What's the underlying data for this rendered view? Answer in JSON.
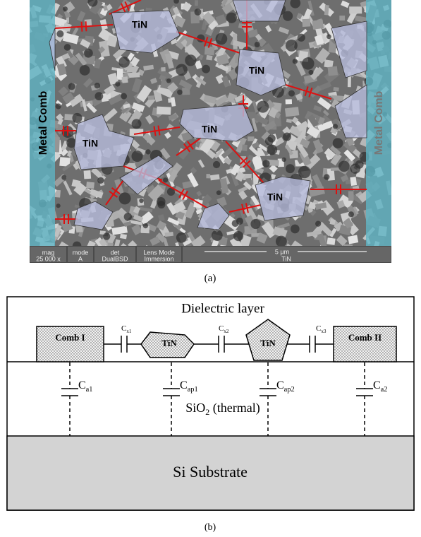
{
  "panel_a": {
    "label": "(a)",
    "tin_labels": [
      "TiN",
      "TiN",
      "TiN",
      "TiN",
      "TiN"
    ],
    "comb_labels": [
      "Metal Comb",
      "Metal Comb"
    ],
    "info_bar": {
      "headers": [
        "mag",
        "mode",
        "det",
        "Lens Mode"
      ],
      "values": [
        "25 000 x",
        "A",
        "DualBSD",
        "Immersion"
      ],
      "scale_bar": "5 µm",
      "sample": "TiN"
    }
  },
  "panel_b": {
    "label": "(b)",
    "layer": "Dielectric layer",
    "combs": [
      "Comb I",
      "Comb II"
    ],
    "particles": [
      "TiN",
      "TiN"
    ],
    "series_caps": [
      {
        "symbol": "C",
        "subscript": "x1"
      },
      {
        "symbol": "C",
        "subscript": "x2"
      },
      {
        "symbol": "C",
        "subscript": "x3"
      }
    ],
    "shunt_caps": [
      {
        "symbol": "C",
        "subscript": "a1"
      },
      {
        "symbol": "C",
        "subscript": "ap1"
      },
      {
        "symbol": "C",
        "subscript": "ap2"
      },
      {
        "symbol": "C",
        "subscript": "a2"
      }
    ],
    "oxide": {
      "text": "SiO",
      "subscript": "2",
      "suffix": " (thermal)"
    },
    "substrate": "Si Substrate"
  }
}
